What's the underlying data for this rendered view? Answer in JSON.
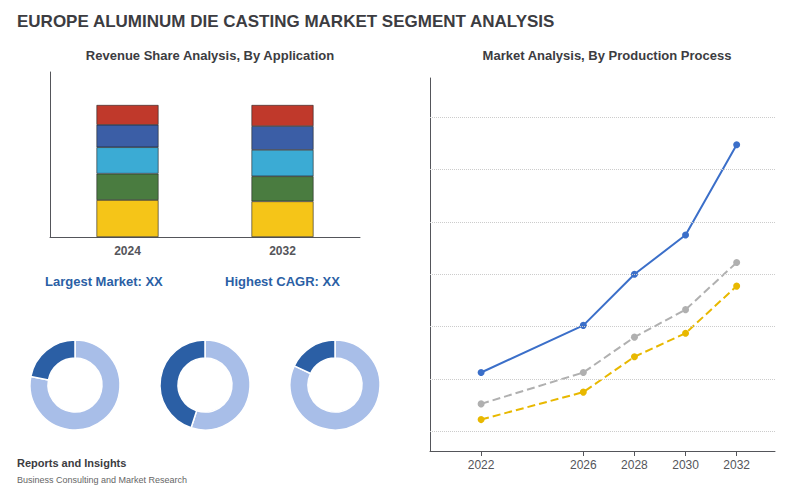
{
  "title": "EUROPE ALUMINUM DIE CASTING MARKET SEGMENT ANALYSIS",
  "annotations": [
    "Reports and Insights",
    "Business Consulting and Market Research"
  ],
  "chart_data": [
    {
      "type": "bar",
      "title": "Revenue Share Analysis, By Application",
      "stacked": true,
      "categories": [
        "2024",
        "2032"
      ],
      "series": [
        {
          "color": "#f5c518",
          "values": [
            0.28,
            0.27
          ]
        },
        {
          "color": "#4a7c40",
          "values": [
            0.2,
            0.19
          ]
        },
        {
          "color": "#3babd4",
          "values": [
            0.2,
            0.2
          ]
        },
        {
          "color": "#3b5ea6",
          "values": [
            0.17,
            0.18
          ]
        },
        {
          "color": "#c0392b",
          "values": [
            0.15,
            0.16
          ]
        }
      ],
      "ylim": [
        0,
        1.25
      ],
      "grid": false,
      "tick_labels": "x",
      "annotations": [
        "Largest Market: XX",
        "Highest CAGR: XX"
      ]
    },
    {
      "type": "donut",
      "values": [
        78,
        22
      ],
      "colors": [
        "#a8bee8",
        "#2b5fa5"
      ]
    },
    {
      "type": "donut",
      "values": [
        55,
        45
      ],
      "colors": [
        "#a8bee8",
        "#2b5fa5"
      ]
    },
    {
      "type": "donut",
      "values": [
        82,
        18
      ],
      "colors": [
        "#a8bee8",
        "#2b5fa5"
      ]
    },
    {
      "type": "line",
      "title": "Market Analysis, By Production Process",
      "x": [
        2022,
        2026,
        2028,
        2030,
        2032
      ],
      "series": [
        {
          "color": "#3b6fc9",
          "line_style": "solid",
          "marker": "circle",
          "values": [
            2.0,
            3.2,
            4.5,
            5.5,
            7.8
          ]
        },
        {
          "color": "#b0b0b0",
          "line_style": "dashed",
          "marker": "circle",
          "values": [
            1.2,
            2.0,
            2.9,
            3.6,
            4.8
          ]
        },
        {
          "color": "#e8b800",
          "line_style": "dashed",
          "marker": "circle",
          "values": [
            0.8,
            1.5,
            2.4,
            3.0,
            4.2
          ]
        }
      ],
      "xlim": [
        2020,
        2033.5
      ],
      "xticks": [
        2022,
        2026,
        2028,
        2030,
        2032
      ],
      "ylim": [
        0,
        9.5
      ],
      "yticks": [
        0.5,
        1.8333333333333333,
        3.1666666666666665,
        4.5,
        5.833333333333333,
        7.166666666666666,
        8.5
      ],
      "grid": true,
      "tick_labels": "x"
    }
  ]
}
